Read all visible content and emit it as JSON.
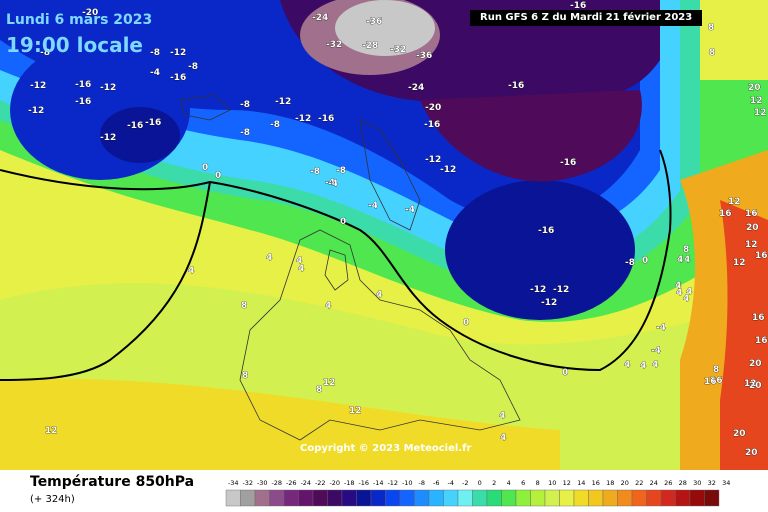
{
  "header": {
    "date": "Lundi 6 mars 2023",
    "time": "19:00 locale",
    "run": "Run GFS 6 Z du Mardi 21 février 2023"
  },
  "copyright": "Copyright © 2023 Meteociel.fr",
  "footer": {
    "title": "Température 850hPa",
    "step": "(+ 324h)"
  },
  "legend": {
    "labels": [
      "-34",
      "-32",
      "-30",
      "-28",
      "-26",
      "-24",
      "-22",
      "-20",
      "-18",
      "-16",
      "-14",
      "-12",
      "-10",
      "-8",
      "-6",
      "-4",
      "-2",
      "0",
      "2",
      "4",
      "6",
      "8",
      "10",
      "12",
      "14",
      "16",
      "18",
      "20",
      "22",
      "24",
      "26",
      "28",
      "30",
      "32",
      "34"
    ],
    "colors": [
      "#c8c8c8",
      "#a0a0a0",
      "#a0708c",
      "#8c4c8c",
      "#78287c",
      "#64146c",
      "#500a5a",
      "#3c0a64",
      "#280a82",
      "#0a1496",
      "#0a28c8",
      "#0a46f0",
      "#1464ff",
      "#1e8cff",
      "#28b4ff",
      "#46d2ff",
      "#6ef0f0",
      "#3cdcaa",
      "#28dc78",
      "#50e650",
      "#8cf03c",
      "#b4f03c",
      "#d2f050",
      "#e6f046",
      "#f0dc28",
      "#f0c81e",
      "#f0aa1e",
      "#f08c1e",
      "#f0641e",
      "#e6461e",
      "#d2281e",
      "#b41414",
      "#960a0a",
      "#780a0a"
    ]
  },
  "map_labels": [
    {
      "t": "-20"
    },
    {
      "t": "-16"
    },
    {
      "t": "-8"
    },
    {
      "t": "-12"
    },
    {
      "t": "-16"
    },
    {
      "t": "-12"
    },
    {
      "t": "-16"
    },
    {
      "t": "-16"
    },
    {
      "t": "-12"
    },
    {
      "t": "-8"
    },
    {
      "t": "-4"
    },
    {
      "t": "-8"
    },
    {
      "t": "-12"
    },
    {
      "t": "-16"
    },
    {
      "t": "-12"
    },
    {
      "t": "-8"
    },
    {
      "t": "-12"
    },
    {
      "t": "-16"
    },
    {
      "t": "-8"
    },
    {
      "t": "-8"
    },
    {
      "t": "-4"
    },
    {
      "t": "-24"
    },
    {
      "t": "-36"
    },
    {
      "t": "-32"
    },
    {
      "t": "-28"
    },
    {
      "t": "-32"
    },
    {
      "t": "-36"
    },
    {
      "t": "-24"
    },
    {
      "t": "-20"
    },
    {
      "t": "-16"
    },
    {
      "t": "-16"
    },
    {
      "t": "-12"
    },
    {
      "t": "-12"
    },
    {
      "t": "-16"
    },
    {
      "t": "-16"
    },
    {
      "t": "-8"
    },
    {
      "t": "-8"
    },
    {
      "t": "-4"
    },
    {
      "t": "-4"
    },
    {
      "t": "0"
    },
    {
      "t": "0"
    },
    {
      "t": "0"
    },
    {
      "t": "-4"
    },
    {
      "t": "-16"
    },
    {
      "t": "-12"
    },
    {
      "t": "-12"
    },
    {
      "t": "-12"
    },
    {
      "t": "-8"
    },
    {
      "t": "0"
    },
    {
      "t": "0"
    },
    {
      "t": "4"
    },
    {
      "t": "4"
    },
    {
      "t": "4"
    },
    {
      "t": "4"
    },
    {
      "t": "4"
    },
    {
      "t": "8"
    },
    {
      "t": "8"
    },
    {
      "t": "8"
    },
    {
      "t": "12"
    },
    {
      "t": "12"
    },
    {
      "t": "12"
    },
    {
      "t": "4"
    },
    {
      "t": "4"
    },
    {
      "t": "4"
    },
    {
      "t": "4"
    },
    {
      "t": "0"
    },
    {
      "t": "4"
    },
    {
      "t": "4"
    },
    {
      "t": "8"
    },
    {
      "t": "12"
    },
    {
      "t": "16"
    },
    {
      "t": "20"
    },
    {
      "t": "16"
    },
    {
      "t": "20"
    },
    {
      "t": "12"
    },
    {
      "t": "16"
    },
    {
      "t": "12"
    },
    {
      "t": "16"
    },
    {
      "t": "16"
    },
    {
      "t": "20"
    },
    {
      "t": "16"
    },
    {
      "t": "20"
    },
    {
      "t": "20"
    },
    {
      "t": "20"
    },
    {
      "t": "12"
    },
    {
      "t": "12"
    },
    {
      "t": "16"
    },
    {
      "t": "12"
    },
    {
      "t": "4"
    },
    {
      "t": "4"
    },
    {
      "t": "8"
    },
    {
      "t": "8"
    },
    {
      "t": "4"
    },
    {
      "t": "4"
    },
    {
      "t": "8"
    },
    {
      "t": "-4"
    },
    {
      "t": "-4"
    },
    {
      "t": "4"
    },
    {
      "t": "4"
    },
    {
      "t": "-12"
    }
  ]
}
